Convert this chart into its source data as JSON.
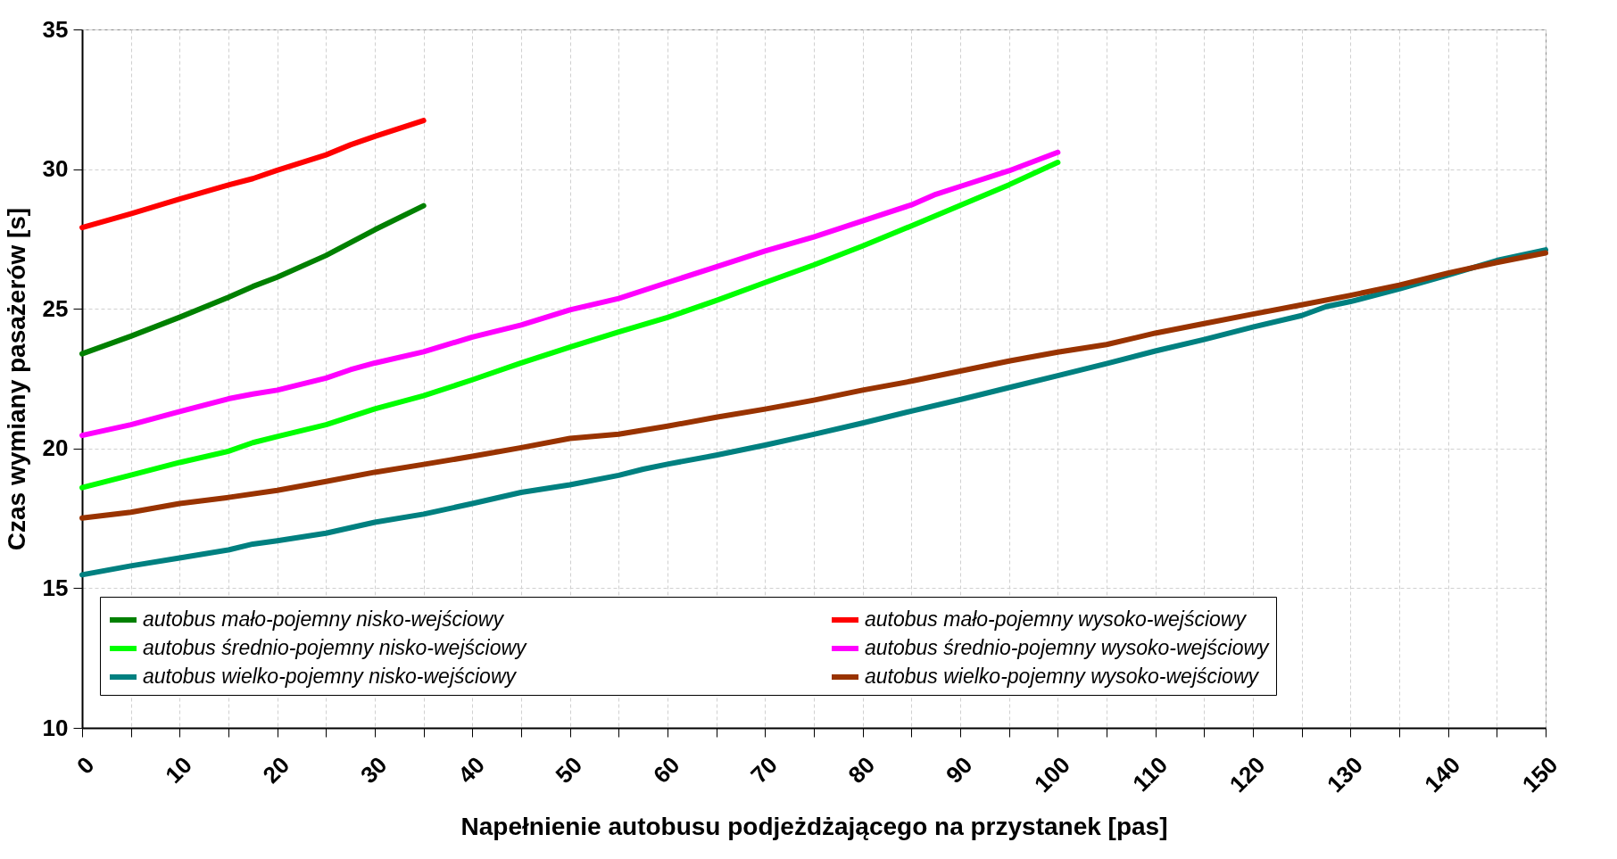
{
  "chart_data": {
    "type": "line",
    "xlabel": "Napełnienie autobusu podjeżdżającego na przystanek [pas]",
    "ylabel": "Czas wymiany pasażerów [s]",
    "xlim": [
      0,
      150
    ],
    "ylim": [
      10,
      35
    ],
    "xticks": [
      0,
      {
        "value": 5,
        "label": null
      },
      10,
      {
        "value": 15,
        "label": null
      },
      20,
      {
        "value": 25,
        "label": null
      },
      30,
      {
        "value": 35,
        "label": null
      },
      40,
      {
        "value": 45,
        "label": null
      },
      50,
      {
        "value": 55,
        "label": null
      },
      60,
      {
        "value": 65,
        "label": null
      },
      70,
      {
        "value": 75,
        "label": null
      },
      80,
      {
        "value": 85,
        "label": null
      },
      90,
      {
        "value": 95,
        "label": null
      },
      100,
      {
        "value": 105,
        "label": null
      },
      110,
      {
        "value": 115,
        "label": null
      },
      120,
      {
        "value": 125,
        "label": null
      },
      130,
      {
        "value": 135,
        "label": null
      },
      140,
      {
        "value": 145,
        "label": null
      },
      150
    ],
    "yticks": [
      10,
      15,
      20,
      25,
      30,
      35
    ],
    "grid": true,
    "legend": "bottom",
    "marker": "none",
    "line_style": "solid",
    "series": [
      {
        "name": "autobus mało-pojemny nisko-wejściowy",
        "color": "#008000",
        "x": [
          0,
          5,
          10,
          15,
          17.5,
          20,
          25,
          30,
          35
        ],
        "values": [
          23.39,
          24.02,
          24.7,
          25.41,
          25.8,
          26.13,
          26.91,
          27.83,
          28.69
        ]
      },
      {
        "name": "autobus mało-pojemny wysoko-wejściowy",
        "color": "#ff0000",
        "x": [
          0,
          5,
          10,
          15,
          17.5,
          20,
          25,
          27.5,
          30,
          35
        ],
        "values": [
          27.91,
          28.4,
          28.93,
          29.43,
          29.66,
          29.96,
          30.51,
          30.87,
          31.17,
          31.74
        ]
      },
      {
        "name": "autobus średnio-pojemny nisko-wejściowy",
        "color": "#00ff00",
        "x": [
          0,
          5,
          10,
          15,
          17.5,
          20,
          25,
          30,
          35,
          40,
          45,
          50,
          55,
          60,
          65,
          70,
          75,
          80,
          85,
          90,
          95,
          100
        ],
        "values": [
          18.6,
          19.05,
          19.5,
          19.9,
          20.21,
          20.43,
          20.85,
          21.42,
          21.89,
          22.46,
          23.06,
          23.63,
          24.17,
          24.69,
          25.3,
          25.94,
          26.57,
          27.25,
          27.97,
          28.7,
          29.44,
          30.24
        ]
      },
      {
        "name": "autobus średnio-pojemny wysoko-wejściowy",
        "color": "#ff00ff",
        "x": [
          0,
          5,
          10,
          15,
          17.5,
          20,
          25,
          27.5,
          30,
          35,
          40,
          45,
          50,
          55,
          60,
          65,
          70,
          75,
          80,
          85,
          87.5,
          90,
          95,
          100
        ],
        "values": [
          20.47,
          20.85,
          21.32,
          21.78,
          21.95,
          22.09,
          22.52,
          22.82,
          23.06,
          23.46,
          23.99,
          24.42,
          24.96,
          25.37,
          25.94,
          26.5,
          27.07,
          27.57,
          28.15,
          28.72,
          29.1,
          29.38,
          29.94,
          30.6
        ]
      },
      {
        "name": "autobus wielko-pojemny nisko-wejściowy",
        "color": "#008080",
        "x": [
          0,
          5,
          10,
          15,
          17.5,
          20,
          25,
          30,
          35,
          40,
          45,
          50,
          55,
          57.5,
          60,
          65,
          70,
          75,
          80,
          85,
          90,
          95,
          100,
          105,
          110,
          115,
          120,
          125,
          127.5,
          130,
          135,
          140,
          145,
          150
        ],
        "values": [
          15.48,
          15.8,
          16.08,
          16.37,
          16.58,
          16.7,
          16.97,
          17.36,
          17.65,
          18.03,
          18.43,
          18.7,
          19.04,
          19.26,
          19.44,
          19.76,
          20.12,
          20.51,
          20.91,
          21.34,
          21.75,
          22.18,
          22.61,
          23.04,
          23.49,
          23.9,
          24.35,
          24.76,
          25.08,
          25.26,
          25.71,
          26.21,
          26.73,
          27.11
        ]
      },
      {
        "name": "autobus wielko-pojemny wysoko-wejściowy",
        "color": "#993300",
        "x": [
          0,
          5,
          10,
          15,
          20,
          25,
          30,
          35,
          40,
          45,
          50,
          55,
          60,
          65,
          70,
          75,
          80,
          85,
          90,
          95,
          100,
          105,
          110,
          115,
          120,
          125,
          130,
          135,
          140,
          145,
          150
        ],
        "values": [
          17.51,
          17.72,
          18.03,
          18.25,
          18.5,
          18.82,
          19.15,
          19.43,
          19.72,
          20.03,
          20.36,
          20.51,
          20.8,
          21.12,
          21.41,
          21.73,
          22.09,
          22.41,
          22.77,
          23.13,
          23.45,
          23.72,
          24.13,
          24.47,
          24.81,
          25.14,
          25.48,
          25.85,
          26.28,
          26.66,
          27.0
        ]
      }
    ]
  }
}
